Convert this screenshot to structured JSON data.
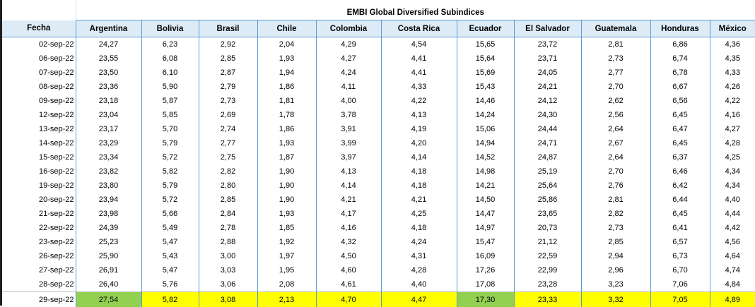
{
  "sheet": {
    "title": "EMBI Global Diversified Subindices",
    "date_header": "Fecha",
    "columns": [
      "Argentina",
      "Bolivia",
      "Brasil",
      "Chile",
      "Colombia",
      "Costa Rica",
      "Ecuador",
      "El Salvador",
      "Guatemala",
      "Honduras",
      "México"
    ],
    "rows": [
      {
        "date": "02-sep-22",
        "values": [
          "24,27",
          "6,23",
          "2,92",
          "2,04",
          "4,29",
          "4,54",
          "15,65",
          "23,72",
          "2,81",
          "6,86",
          "4,36"
        ]
      },
      {
        "date": "06-sep-22",
        "values": [
          "23,55",
          "6,08",
          "2,85",
          "1,93",
          "4,27",
          "4,41",
          "15,64",
          "23,71",
          "2,73",
          "6,74",
          "4,35"
        ]
      },
      {
        "date": "07-sep-22",
        "values": [
          "23,50",
          "6,10",
          "2,87",
          "1,94",
          "4,24",
          "4,41",
          "15,69",
          "24,05",
          "2,77",
          "6,78",
          "4,33"
        ]
      },
      {
        "date": "08-sep-22",
        "values": [
          "23,36",
          "5,90",
          "2,79",
          "1,86",
          "4,11",
          "4,33",
          "15,43",
          "24,21",
          "2,70",
          "6,67",
          "4,26"
        ]
      },
      {
        "date": "09-sep-22",
        "values": [
          "23,18",
          "5,87",
          "2,73",
          "1,81",
          "4,00",
          "4,22",
          "14,46",
          "24,12",
          "2,62",
          "6,56",
          "4,22"
        ]
      },
      {
        "date": "12-sep-22",
        "values": [
          "23,04",
          "5,85",
          "2,69",
          "1,78",
          "3,78",
          "4,13",
          "14,24",
          "24,30",
          "2,56",
          "6,45",
          "4,16"
        ]
      },
      {
        "date": "13-sep-22",
        "values": [
          "23,17",
          "5,70",
          "2,74",
          "1,86",
          "3,91",
          "4,19",
          "15,06",
          "24,44",
          "2,64",
          "6,47",
          "4,27"
        ]
      },
      {
        "date": "14-sep-22",
        "values": [
          "23,29",
          "5,79",
          "2,77",
          "1,93",
          "3,99",
          "4,20",
          "14,94",
          "24,71",
          "2,67",
          "6,45",
          "4,28"
        ]
      },
      {
        "date": "15-sep-22",
        "values": [
          "23,34",
          "5,72",
          "2,75",
          "1,87",
          "3,97",
          "4,14",
          "14,52",
          "24,87",
          "2,64",
          "6,37",
          "4,25"
        ]
      },
      {
        "date": "16-sep-22",
        "values": [
          "23,82",
          "5,82",
          "2,82",
          "1,90",
          "4,13",
          "4,18",
          "14,98",
          "25,19",
          "2,70",
          "6,46",
          "4,34"
        ]
      },
      {
        "date": "19-sep-22",
        "values": [
          "23,80",
          "5,79",
          "2,80",
          "1,90",
          "4,14",
          "4,18",
          "14,21",
          "25,64",
          "2,76",
          "6,42",
          "4,34"
        ]
      },
      {
        "date": "20-sep-22",
        "values": [
          "23,94",
          "5,72",
          "2,85",
          "1,90",
          "4,21",
          "4,21",
          "14,50",
          "25,86",
          "2,81",
          "6,44",
          "4,40"
        ]
      },
      {
        "date": "21-sep-22",
        "values": [
          "23,98",
          "5,66",
          "2,84",
          "1,93",
          "4,17",
          "4,25",
          "14,47",
          "23,65",
          "2,82",
          "6,45",
          "4,44"
        ]
      },
      {
        "date": "22-sep-22",
        "values": [
          "24,39",
          "5,49",
          "2,78",
          "1,85",
          "4,16",
          "4,18",
          "14,97",
          "20,73",
          "2,73",
          "6,41",
          "4,42"
        ]
      },
      {
        "date": "23-sep-22",
        "values": [
          "25,23",
          "5,47",
          "2,88",
          "1,92",
          "4,32",
          "4,24",
          "15,47",
          "21,12",
          "2,85",
          "6,57",
          "4,56"
        ]
      },
      {
        "date": "26-sep-22",
        "values": [
          "25,90",
          "5,43",
          "3,00",
          "1,97",
          "4,50",
          "4,31",
          "16,09",
          "22,59",
          "2,94",
          "6,73",
          "4,64"
        ]
      },
      {
        "date": "27-sep-22",
        "values": [
          "26,91",
          "5,47",
          "3,03",
          "1,95",
          "4,60",
          "4,28",
          "17,26",
          "22,99",
          "2,96",
          "6,70",
          "4,74"
        ]
      },
      {
        "date": "28-sep-22",
        "values": [
          "26,40",
          "5,76",
          "3,06",
          "2,08",
          "4,61",
          "4,40",
          "17,08",
          "23,28",
          "3,23",
          "7,06",
          "4,84"
        ]
      },
      {
        "date": "29-sep-22",
        "values": [
          "27,54",
          "5,82",
          "3,08",
          "2,13",
          "4,70",
          "4,47",
          "17,30",
          "23,33",
          "3,32",
          "7,05",
          "4,89"
        ]
      }
    ],
    "highlight": {
      "row": "29-sep-22",
      "default_color": "#ffff00",
      "green_color": "#92d050",
      "green_columns": [
        "Argentina",
        "Ecuador"
      ]
    },
    "header_fill": "#ddebf7",
    "grid_line_color": "#5b9bd5"
  }
}
